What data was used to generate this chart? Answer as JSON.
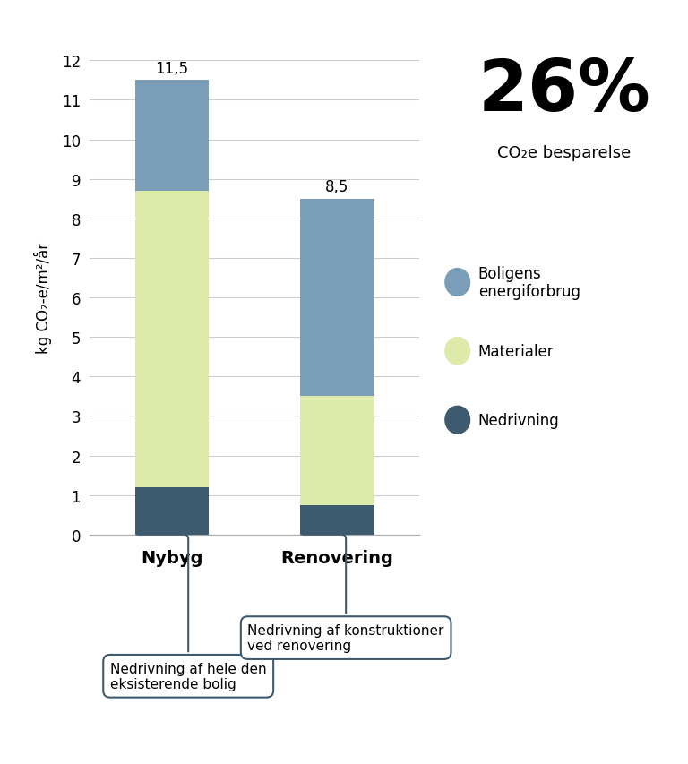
{
  "categories": [
    "Nybyg",
    "Renovering"
  ],
  "nedrivning": [
    1.2,
    0.75
  ],
  "materialer": [
    7.5,
    2.75
  ],
  "energiforbrug": [
    2.8,
    5.0
  ],
  "totals": [
    11.5,
    8.5
  ],
  "color_nedrivning": "#3d5a6e",
  "color_materialer": "#ddeaaa",
  "color_energiforbrug": "#7a9db8",
  "ylabel": "kg CO₂-e/m²/år",
  "ylim": [
    0,
    12
  ],
  "yticks": [
    0,
    1,
    2,
    3,
    4,
    5,
    6,
    7,
    8,
    9,
    10,
    11,
    12
  ],
  "pct_text": "26%",
  "pct_label": "CO₂e besparelse",
  "legend_labels": [
    "Boligens\nenergiforbrug",
    "Materialer",
    "Nedrivning"
  ],
  "annotation_nybyg": "Nedrivning af hele den\neksisterende bolig",
  "annotation_renovering": "Nedrivning af konstruktioner\nved renovering",
  "annotation_color": "#3d5a6e",
  "background_color": "#ffffff",
  "bar_width": 0.45
}
